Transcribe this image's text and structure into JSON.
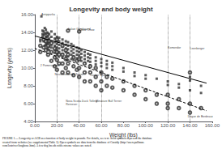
{
  "chart_data": {
    "type": "scatter",
    "title": "Longevity and body weight",
    "xlabel": "Weight (lbs)",
    "ylabel": "Longevity (years)",
    "caption": "FIGURE 1.— Longevity or AGB as a function of body weight in pounds. For details, see text. Solid symbols represent the database\ncreated from websites (see supplemental Table 5). Open symbols are data from the database of Cassidy (http://users.pullman.\ncom/lostriver/longbone.htm). A few dog breeds with extreme values are noted.",
    "xlim": [
      0,
      160
    ],
    "ylim": [
      4,
      16
    ],
    "xticks": [
      {
        "value": 0,
        "label": "0.00"
      },
      {
        "value": 20,
        "label": "20.00"
      },
      {
        "value": 40,
        "label": "40.00"
      },
      {
        "value": 60,
        "label": "60.00"
      },
      {
        "value": 80,
        "label": "80.00"
      },
      {
        "value": 100,
        "label": "100.00"
      },
      {
        "value": 120,
        "label": "120.00"
      },
      {
        "value": 140,
        "label": "140.00"
      },
      {
        "value": 160,
        "label": "160.00"
      }
    ],
    "yticks": [
      {
        "value": 4,
        "label": "4.00"
      },
      {
        "value": 6,
        "label": "6.00"
      },
      {
        "value": 8,
        "label": "8.00"
      },
      {
        "value": 10,
        "label": "10.00"
      },
      {
        "value": 12,
        "label": "12.00"
      },
      {
        "value": 14,
        "label": "14.00"
      },
      {
        "value": 16,
        "label": "16.00"
      }
    ],
    "grid": false,
    "series": [
      {
        "type": "scatter",
        "marker": "square",
        "color": "#333333",
        "values": [
          [
            5,
            13.2
          ],
          [
            5,
            13.0
          ],
          [
            6,
            15.8
          ],
          [
            7,
            13.5
          ],
          [
            7,
            14.2
          ],
          [
            7,
            13.8
          ],
          [
            8,
            14.1
          ],
          [
            8,
            13.7
          ],
          [
            8,
            13.0
          ],
          [
            9,
            14.5
          ],
          [
            9,
            13.9
          ],
          [
            9,
            13.1
          ],
          [
            9,
            12.5
          ],
          [
            10,
            14.3
          ],
          [
            10,
            13.8
          ],
          [
            10,
            13.5
          ],
          [
            10,
            13.2
          ],
          [
            10,
            12.9
          ],
          [
            10,
            12.6
          ],
          [
            11,
            14.0
          ],
          [
            11,
            13.5
          ],
          [
            11,
            13.0
          ],
          [
            11,
            12.7
          ],
          [
            11,
            12.2
          ],
          [
            12,
            13.9
          ],
          [
            12,
            13.6
          ],
          [
            12,
            13.2
          ],
          [
            12,
            12.8
          ],
          [
            12,
            12.5
          ],
          [
            12,
            12.1
          ],
          [
            13,
            13.8
          ],
          [
            13,
            13.3
          ],
          [
            13,
            12.9
          ],
          [
            13,
            12.4
          ],
          [
            13,
            12.0
          ],
          [
            15,
            14.1
          ],
          [
            15,
            13.5
          ],
          [
            15,
            13.0
          ],
          [
            15,
            12.6
          ],
          [
            15,
            12.3
          ],
          [
            18,
            13.8
          ],
          [
            18,
            13.3
          ],
          [
            18,
            12.9
          ],
          [
            18,
            12.5
          ],
          [
            18,
            12.0
          ],
          [
            18,
            11.7
          ],
          [
            20,
            13.5
          ],
          [
            20,
            13.0
          ],
          [
            20,
            12.7
          ],
          [
            20,
            12.3
          ],
          [
            20,
            12.0
          ],
          [
            20,
            11.5
          ],
          [
            22,
            13.4
          ],
          [
            22,
            13.0
          ],
          [
            22,
            12.6
          ],
          [
            22,
            12.2
          ],
          [
            22,
            11.8
          ],
          [
            25,
            13.2
          ],
          [
            25,
            12.8
          ],
          [
            25,
            12.4
          ],
          [
            25,
            12.0
          ],
          [
            25,
            11.6
          ],
          [
            25,
            11.2
          ],
          [
            28,
            13.0
          ],
          [
            28,
            12.6
          ],
          [
            28,
            12.2
          ],
          [
            28,
            11.8
          ],
          [
            28,
            11.3
          ],
          [
            30,
            12.9
          ],
          [
            30,
            12.5
          ],
          [
            30,
            12.1
          ],
          [
            30,
            11.7
          ],
          [
            30,
            11.3
          ],
          [
            30,
            10.9
          ],
          [
            33,
            12.7
          ],
          [
            33,
            12.3
          ],
          [
            33,
            11.9
          ],
          [
            33,
            11.5
          ],
          [
            33,
            11.0
          ],
          [
            35,
            12.5
          ],
          [
            35,
            12.1
          ],
          [
            35,
            11.7
          ],
          [
            35,
            11.3
          ],
          [
            35,
            10.9
          ],
          [
            38,
            12.3
          ],
          [
            38,
            11.9
          ],
          [
            38,
            11.5
          ],
          [
            38,
            11.1
          ],
          [
            40,
            12.2
          ],
          [
            40,
            11.8
          ],
          [
            40,
            11.4
          ],
          [
            40,
            11.0
          ],
          [
            42,
            12.0
          ],
          [
            42,
            11.6
          ],
          [
            42,
            11.2
          ],
          [
            42,
            10.8
          ],
          [
            45,
            11.8
          ],
          [
            45,
            11.4
          ],
          [
            45,
            11.0
          ],
          [
            45,
            10.6
          ],
          [
            48,
            11.6
          ],
          [
            48,
            11.2
          ],
          [
            48,
            10.8
          ],
          [
            50,
            11.5
          ],
          [
            50,
            11.1
          ],
          [
            50,
            10.7
          ],
          [
            50,
            10.3
          ],
          [
            55,
            11.2
          ],
          [
            55,
            10.8
          ],
          [
            55,
            10.4
          ],
          [
            55,
            10.0
          ],
          [
            60,
            11.0
          ],
          [
            60,
            10.6
          ],
          [
            60,
            10.2
          ],
          [
            65,
            10.8
          ],
          [
            65,
            10.4
          ],
          [
            65,
            10.0
          ],
          [
            70,
            10.6
          ],
          [
            70,
            10.2
          ],
          [
            70,
            9.8
          ],
          [
            80,
            10.0
          ],
          [
            80,
            9.6
          ],
          [
            90,
            9.5
          ],
          [
            90,
            9.1
          ],
          [
            100,
            9.2
          ],
          [
            100,
            8.8
          ],
          [
            110,
            8.8
          ],
          [
            120,
            8.5
          ],
          [
            120,
            8.1
          ],
          [
            130,
            8.2
          ],
          [
            130,
            7.8
          ],
          [
            140,
            9.0
          ],
          [
            140,
            8.6
          ],
          [
            140,
            7.5
          ],
          [
            150,
            8.0
          ],
          [
            150,
            7.2
          ]
        ],
        "annotations": [
          {
            "x": 6,
            "y": 15.8,
            "text": "Antipparka"
          },
          {
            "x": 30,
            "y": 14.2,
            "text": "Italian Greyhound"
          },
          {
            "x": 40,
            "y": 14.1,
            "text": "Chow Chow"
          },
          {
            "x": 120,
            "y": 12.1,
            "text": "Komondor"
          },
          {
            "x": 140,
            "y": 12.0,
            "text": "Leonberger"
          }
        ]
      },
      {
        "type": "scatter",
        "marker": "ring",
        "color": "#333333",
        "values": [
          [
            5,
            12.5
          ],
          [
            5,
            11.8
          ],
          [
            8,
            13.2
          ],
          [
            8,
            12.3
          ],
          [
            10,
            13.0
          ],
          [
            10,
            12.0
          ],
          [
            12,
            12.5
          ],
          [
            12,
            11.5
          ],
          [
            15,
            12.8
          ],
          [
            15,
            11.8
          ],
          [
            15,
            10.8
          ],
          [
            18,
            12.2
          ],
          [
            18,
            11.2
          ],
          [
            18,
            10.2
          ],
          [
            20,
            13.2
          ],
          [
            20,
            11.8
          ],
          [
            20,
            10.9
          ],
          [
            20,
            9.8
          ],
          [
            22,
            11.5
          ],
          [
            22,
            10.5
          ],
          [
            25,
            12.5
          ],
          [
            25,
            11.5
          ],
          [
            25,
            10.5
          ],
          [
            25,
            9.5
          ],
          [
            28,
            12.0
          ],
          [
            28,
            11.0
          ],
          [
            28,
            10.0
          ],
          [
            30,
            14.2
          ],
          [
            30,
            11.5
          ],
          [
            30,
            10.5
          ],
          [
            30,
            9.5
          ],
          [
            35,
            11.2
          ],
          [
            35,
            10.2
          ],
          [
            35,
            9.2
          ],
          [
            38,
            10.8
          ],
          [
            38,
            9.8
          ],
          [
            40,
            14.1
          ],
          [
            40,
            11.0
          ],
          [
            40,
            10.0
          ],
          [
            40,
            9.0
          ],
          [
            45,
            10.5
          ],
          [
            45,
            9.5
          ],
          [
            45,
            8.5
          ],
          [
            50,
            10.2
          ],
          [
            50,
            9.5
          ],
          [
            50,
            8.5
          ],
          [
            55,
            10.0
          ],
          [
            55,
            9.0
          ],
          [
            55,
            8.0
          ],
          [
            60,
            9.5
          ],
          [
            60,
            8.5
          ],
          [
            60,
            7.5
          ],
          [
            65,
            9.0
          ],
          [
            65,
            8.0
          ],
          [
            70,
            8.8
          ],
          [
            70,
            7.8
          ],
          [
            80,
            8.5
          ],
          [
            80,
            7.5
          ],
          [
            90,
            8.0
          ],
          [
            90,
            7.0
          ],
          [
            100,
            7.5
          ],
          [
            100,
            6.5
          ],
          [
            110,
            7.0
          ],
          [
            110,
            6.0
          ],
          [
            120,
            7.0
          ],
          [
            120,
            6.0
          ],
          [
            120,
            5.5
          ],
          [
            130,
            6.5
          ],
          [
            130,
            5.5
          ],
          [
            140,
            9.5
          ],
          [
            140,
            6.0
          ],
          [
            140,
            5.0
          ],
          [
            150,
            5.5
          ]
        ],
        "annotations": [
          {
            "x": 5,
            "y": 10.5,
            "text": "2 Pomeranians"
          },
          {
            "x": 18,
            "y": 9.5,
            "text": "Neufoundlander Terrier"
          },
          {
            "x": 50,
            "y": 9.4,
            "text": "Cocker Spaniel"
          },
          {
            "x": 28,
            "y": 6.5,
            "text": "Nova Scotia Duck Tolling\nRetriever"
          },
          {
            "x": 55,
            "y": 6.5,
            "text": "Miniature Bull Terrier"
          },
          {
            "x": 138,
            "y": 4.7,
            "text": "Dogue de Bordeaux"
          }
        ]
      },
      {
        "type": "line",
        "color": "#000000",
        "line_style": "solid",
        "values": [
          [
            0,
            13.6
          ],
          [
            155,
            8.3
          ]
        ]
      },
      {
        "type": "line",
        "color": "#000000",
        "line_style": "dashed",
        "values": [
          [
            0,
            12.2
          ],
          [
            155,
            5.2
          ]
        ]
      }
    ],
    "vlines": {
      "x": [
        20,
        40,
        60,
        120,
        140
      ],
      "color": "#000000",
      "line_style": "dotted"
    }
  }
}
